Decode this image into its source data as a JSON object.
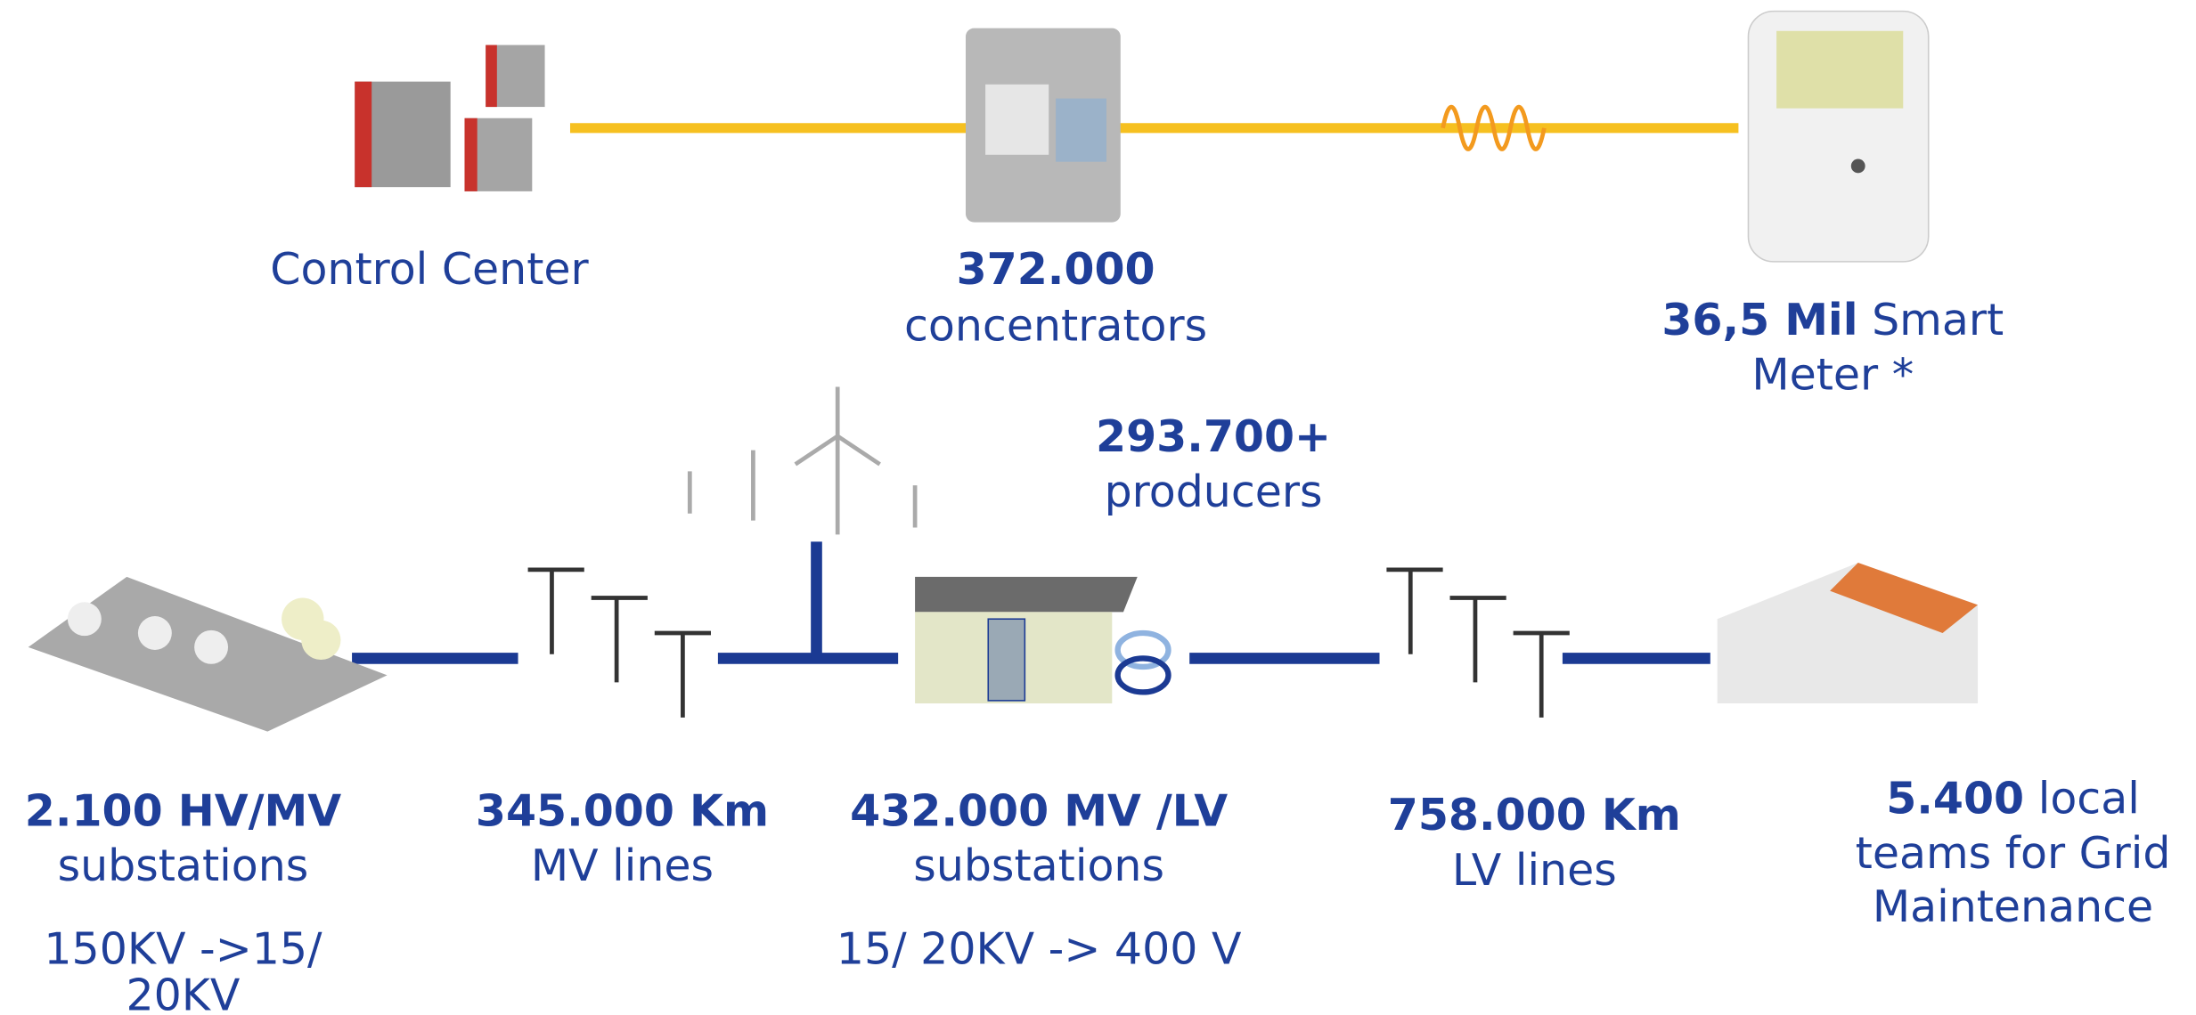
{
  "top": [
    {
      "label": "Control Center"
    },
    {
      "bold": "372.000",
      "lines": [
        "concentrators"
      ]
    },
    {
      "bold": "36,5 Mil",
      "inline": "Smart",
      "lines": [
        "Meter *"
      ]
    }
  ],
  "producers": {
    "bold": "293.700+",
    "lines": [
      "producers"
    ]
  },
  "bottom": [
    {
      "bold": "2.100 HV/MV",
      "lines": [
        "substations"
      ],
      "note": [
        "150KV ->15/",
        "20KV"
      ]
    },
    {
      "bold": "345.000 Km",
      "lines": [
        "MV lines"
      ]
    },
    {
      "bold": "432.000 MV /LV",
      "lines": [
        "substations"
      ],
      "note": [
        "15/ 20KV -> 400 V"
      ]
    },
    {
      "bold": "758.000 Km",
      "lines": [
        "LV lines"
      ]
    },
    {
      "bold": "5.400",
      "inline": "local",
      "lines": [
        "teams for Grid",
        "Maintenance"
      ]
    }
  ]
}
